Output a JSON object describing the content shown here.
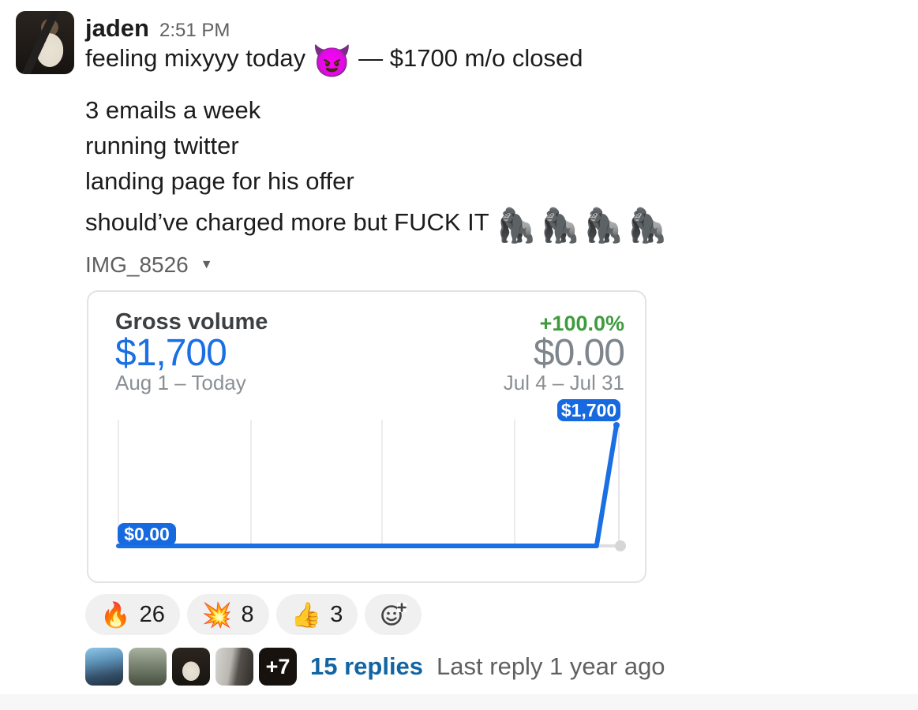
{
  "message": {
    "author": "jaden",
    "timestamp": "2:51 PM",
    "line1": {
      "before_emoji": "feeling mixyyy today ",
      "emoji": "😈",
      "after_emoji": " — $1700 m/o closed"
    },
    "body_lines": [
      "3 emails a week",
      "running twitter",
      "landing page for his offer"
    ],
    "closing_line": {
      "text": "should’ve charged more but FUCK IT ",
      "emoji": "🦍🦍🦍🦍"
    }
  },
  "attachment": {
    "file_name": "IMG_8526",
    "collapse_icon": "▼"
  },
  "chart_data": {
    "type": "line",
    "title": "Gross volume",
    "percent_change": "+100.0%",
    "current": {
      "value": "$1,700",
      "period": "Aug 1 – Today"
    },
    "comparison": {
      "value": "$0.00",
      "period": "Jul 4 – Jul 31"
    },
    "ylim": [
      0,
      1700
    ],
    "series": [
      {
        "name": "Aug 1 – Today",
        "values": [
          0,
          0,
          0,
          0,
          0,
          0,
          0,
          0,
          0,
          0,
          0,
          0,
          0,
          0,
          0,
          0,
          0,
          0,
          0,
          0,
          0,
          0,
          0,
          0,
          0,
          1700
        ]
      },
      {
        "name": "Jul 4 – Jul 31",
        "values": [
          0,
          0,
          0,
          0,
          0,
          0,
          0,
          0,
          0,
          0,
          0,
          0,
          0,
          0,
          0,
          0,
          0,
          0,
          0,
          0,
          0,
          0,
          0,
          0,
          0,
          0
        ]
      }
    ],
    "start_label": "$0.00",
    "end_label": "$1,700",
    "grid": "vertical-only",
    "legend": "none",
    "colors": {
      "line": "#1a6fe3",
      "badge": "#1769e0",
      "comparison_dot": "#d6d6d8",
      "positive": "#3e9b3e",
      "muted": "#8a8f94"
    }
  },
  "reactions": [
    {
      "emoji": "🔥",
      "count": "26"
    },
    {
      "emoji": "💥",
      "count": "8"
    },
    {
      "emoji": "👍",
      "count": "3"
    }
  ],
  "thread": {
    "overflow_badge": "+7",
    "replies_label": "15 replies",
    "last_reply_label": "Last reply 1 year ago"
  }
}
